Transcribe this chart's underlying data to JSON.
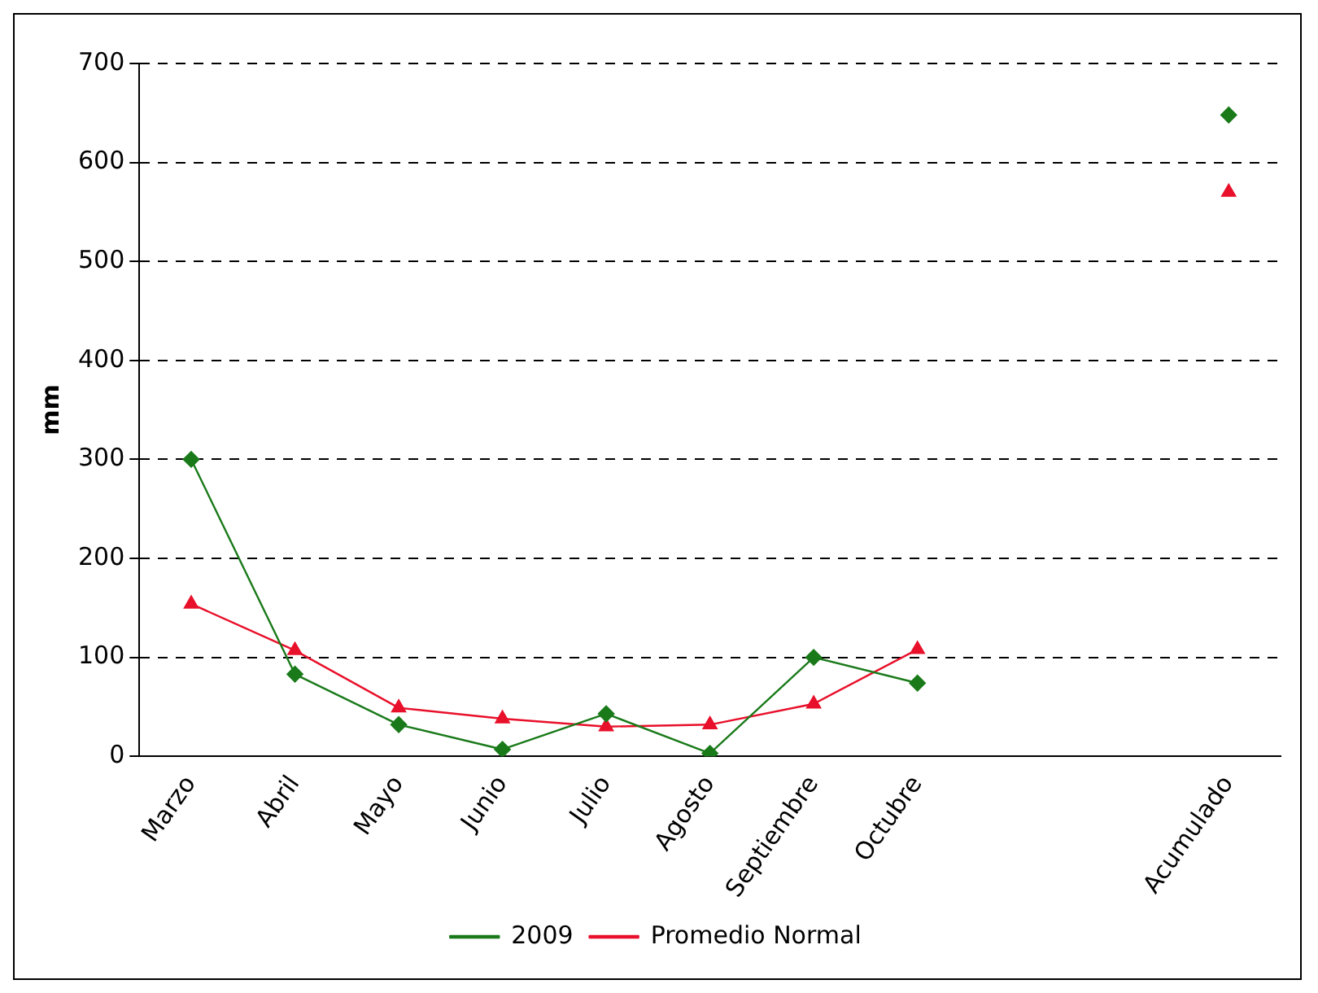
{
  "chart_data": {
    "type": "line",
    "ylabel": "mm",
    "categories": [
      "Marzo",
      "Abril",
      "Mayo",
      "Junio",
      "Julio",
      "Agosto",
      "Septiembre",
      "Octubre",
      null,
      null,
      "Acumulado"
    ],
    "series": [
      {
        "name": "2009",
        "color": "#1a7a1a",
        "marker": "diamond",
        "values": [
          300,
          83,
          32,
          7,
          43,
          3,
          100,
          74,
          null,
          null,
          648
        ]
      },
      {
        "name": "Promedio Normal",
        "color": "#e8102a",
        "marker": "triangle",
        "values": [
          154,
          107,
          49,
          38,
          30,
          32,
          53,
          108,
          null,
          null,
          570
        ]
      }
    ],
    "ylim": [
      0,
      700
    ],
    "yticks": [
      0,
      100,
      200,
      300,
      400,
      500,
      600,
      700
    ],
    "grid": "y",
    "legend": "bottom",
    "line_style": "solid"
  }
}
